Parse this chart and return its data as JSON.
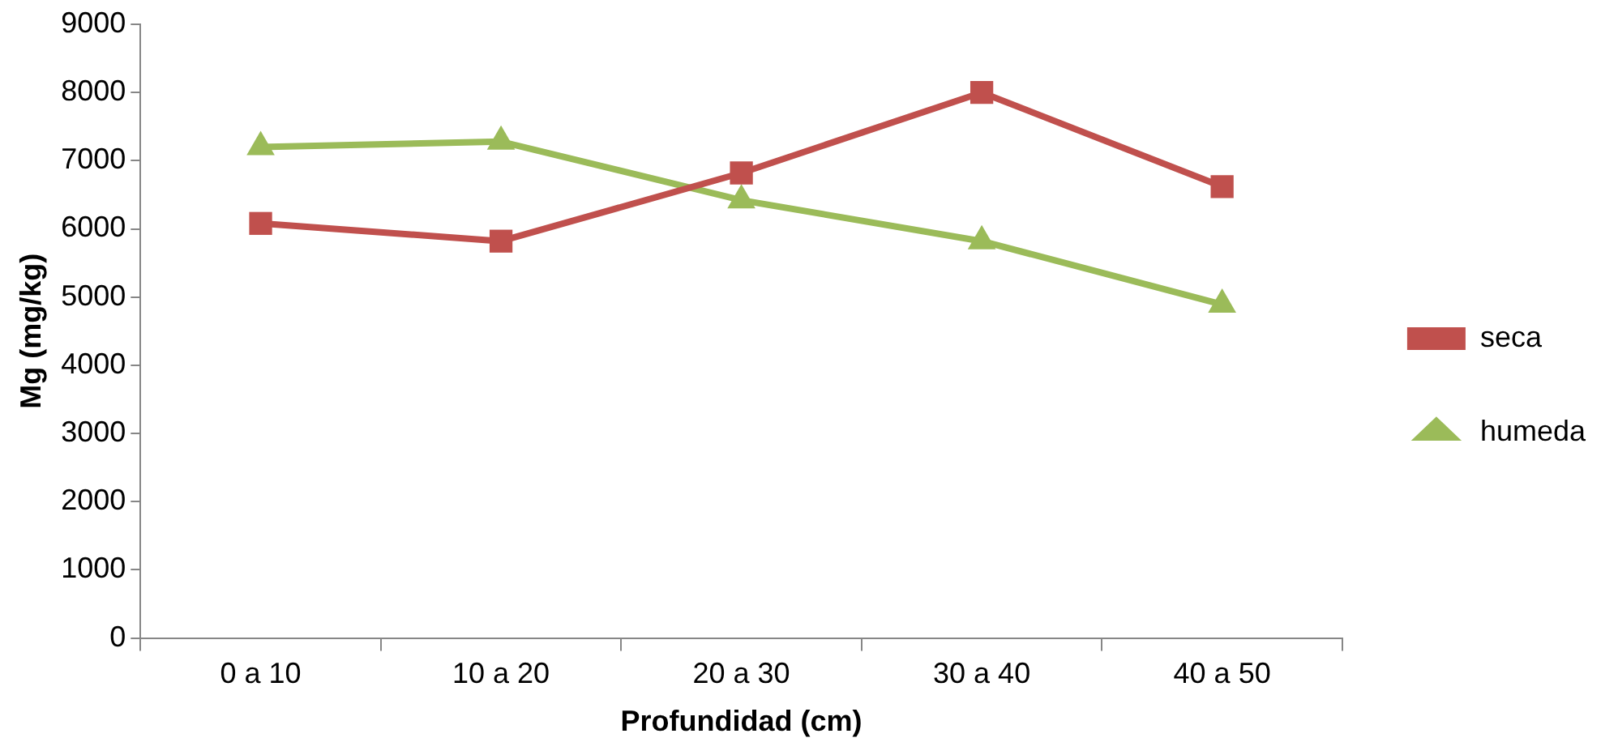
{
  "chart_data": {
    "type": "line",
    "xlabel": "Profundidad (cm)",
    "ylabel": "Mg (mg/kg)",
    "categories": [
      "0 a 10",
      "10 a 20",
      "20 a 30",
      "30 a 40",
      "40 a 50"
    ],
    "series": [
      {
        "name": "seca",
        "color": "#c0504d",
        "marker": "square",
        "values": [
          6080,
          5820,
          6820,
          8000,
          6620
        ]
      },
      {
        "name": "humeda",
        "color": "#9bbb59",
        "marker": "triangle",
        "values": [
          7200,
          7280,
          6420,
          5820,
          4890
        ]
      }
    ],
    "ylim": [
      0,
      9000
    ],
    "yticks": [
      0,
      1000,
      2000,
      3000,
      4000,
      5000,
      6000,
      7000,
      8000,
      9000
    ],
    "grid": false,
    "legend": "right",
    "line_style": "solid"
  }
}
